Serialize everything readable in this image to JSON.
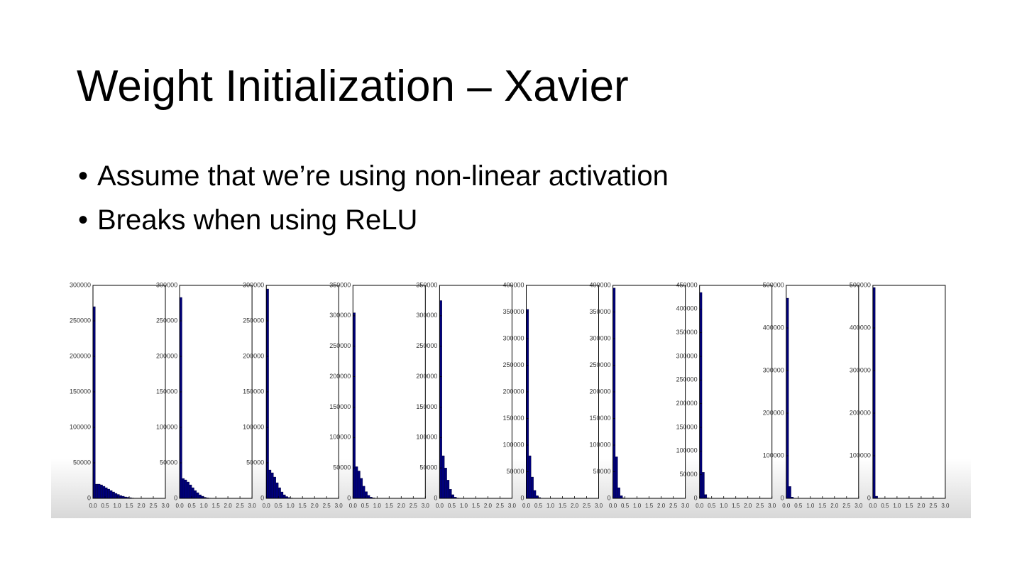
{
  "title": "Weight Initialization – Xavier",
  "bullets": [
    "Assume that we’re using non-linear activation",
    "Breaks when using ReLU"
  ],
  "chart_data": [
    {
      "type": "histogram",
      "color": "#00007a",
      "xlim": [
        0,
        3
      ],
      "ylim": [
        0,
        300000
      ],
      "xticks": [
        {
          "value": 0,
          "label": "0.0"
        },
        0.5,
        {
          "value": 1,
          "label": "1.0"
        },
        1.5,
        {
          "value": 2,
          "label": "2.0"
        },
        2.5,
        {
          "value": 3,
          "label": "3.0"
        }
      ],
      "yticks": [
        0,
        50000,
        100000,
        150000,
        200000,
        250000,
        300000
      ],
      "bins": [
        0,
        0.1,
        0.2,
        0.3,
        0.4,
        0.5,
        0.6,
        0.7,
        0.8,
        0.9,
        1,
        1.1,
        1.2,
        1.3,
        1.4,
        1.5,
        1.6,
        1.7,
        1.8,
        1.9,
        2
      ],
      "counts": [
        270000,
        20000,
        20000,
        19000,
        17000,
        15000,
        13000,
        11000,
        9000,
        7000,
        5500,
        4000,
        3000,
        2000,
        1500,
        1000,
        500,
        300,
        100,
        0
      ]
    },
    {
      "type": "histogram",
      "color": "#00007a",
      "xlim": [
        0,
        3
      ],
      "ylim": [
        0,
        300000
      ],
      "xticks": [
        {
          "value": 0,
          "label": "0.0"
        },
        0.5,
        {
          "value": 1,
          "label": "1.0"
        },
        1.5,
        {
          "value": 2,
          "label": "2.0"
        },
        2.5,
        {
          "value": 3,
          "label": "3.0"
        }
      ],
      "yticks": [
        0,
        50000,
        100000,
        150000,
        200000,
        250000,
        300000
      ],
      "bins": [
        0,
        0.1,
        0.2,
        0.3,
        0.4,
        0.5,
        0.6,
        0.7,
        0.8,
        0.9,
        1,
        1.1,
        1.2,
        1.3,
        1.4,
        1.5,
        1.6,
        1.7,
        1.8,
        1.9,
        2
      ],
      "counts": [
        283000,
        28000,
        26000,
        23000,
        19000,
        15000,
        11000,
        8000,
        5000,
        3000,
        1500,
        800,
        400,
        200,
        100,
        0,
        0,
        0,
        0,
        0
      ]
    },
    {
      "type": "histogram",
      "color": "#00007a",
      "xlim": [
        0,
        3
      ],
      "ylim": [
        0,
        300000
      ],
      "xticks": [
        {
          "value": 0,
          "label": "0.0"
        },
        0.5,
        {
          "value": 1,
          "label": "1.0"
        },
        1.5,
        {
          "value": 2,
          "label": "2.0"
        },
        2.5,
        {
          "value": 3,
          "label": "3.0"
        }
      ],
      "yticks": [
        0,
        50000,
        100000,
        150000,
        200000,
        250000,
        300000
      ],
      "bins": [
        0,
        0.1,
        0.2,
        0.3,
        0.4,
        0.5,
        0.6,
        0.7,
        0.8,
        0.9,
        1,
        1.1,
        1.2,
        1.3,
        1.4,
        1.5,
        1.6,
        1.7,
        1.8,
        1.9,
        2
      ],
      "counts": [
        295000,
        40000,
        36000,
        30000,
        22000,
        15000,
        9000,
        5000,
        2500,
        1200,
        500,
        200,
        100,
        0,
        0,
        0,
        0,
        0,
        0,
        0
      ]
    },
    {
      "type": "histogram",
      "color": "#00007a",
      "xlim": [
        0,
        3
      ],
      "ylim": [
        0,
        350000
      ],
      "xticks": [
        {
          "value": 0,
          "label": "0.0"
        },
        0.5,
        {
          "value": 1,
          "label": "1.0"
        },
        1.5,
        {
          "value": 2,
          "label": "2.0"
        },
        2.5,
        {
          "value": 3,
          "label": "3.0"
        }
      ],
      "yticks": [
        0,
        50000,
        100000,
        150000,
        200000,
        250000,
        300000,
        350000
      ],
      "bins": [
        0,
        0.1,
        0.2,
        0.3,
        0.4,
        0.5,
        0.6,
        0.7,
        0.8,
        0.9,
        1,
        1.1,
        1.2,
        1.3,
        1.4,
        1.5,
        1.6,
        1.7,
        1.8,
        1.9,
        2
      ],
      "counts": [
        305000,
        52000,
        45000,
        33000,
        20000,
        11000,
        5000,
        2000,
        800,
        300,
        100,
        0,
        0,
        0,
        0,
        0,
        0,
        0,
        0,
        0
      ]
    },
    {
      "type": "histogram",
      "color": "#00007a",
      "xlim": [
        0,
        3
      ],
      "ylim": [
        0,
        350000
      ],
      "xticks": [
        {
          "value": 0,
          "label": "0.0"
        },
        0.5,
        {
          "value": 1,
          "label": "1.0"
        },
        1.5,
        {
          "value": 2,
          "label": "2.0"
        },
        2.5,
        {
          "value": 3,
          "label": "3.0"
        }
      ],
      "yticks": [
        0,
        50000,
        100000,
        150000,
        200000,
        250000,
        300000,
        350000
      ],
      "bins": [
        0,
        0.1,
        0.2,
        0.3,
        0.4,
        0.5,
        0.6,
        0.7,
        0.8,
        0.9,
        1,
        1.1,
        1.2,
        1.3,
        1.4,
        1.5,
        1.6,
        1.7,
        1.8,
        1.9,
        2
      ],
      "counts": [
        325000,
        70000,
        50000,
        30000,
        15000,
        6000,
        2000,
        600,
        200,
        0,
        0,
        0,
        0,
        0,
        0,
        0,
        0,
        0,
        0,
        0
      ]
    },
    {
      "type": "histogram",
      "color": "#00007a",
      "xlim": [
        0,
        3
      ],
      "ylim": [
        0,
        400000
      ],
      "xticks": [
        {
          "value": 0,
          "label": "0.0"
        },
        0.5,
        {
          "value": 1,
          "label": "1.0"
        },
        1.5,
        {
          "value": 2,
          "label": "2.0"
        },
        2.5,
        {
          "value": 3,
          "label": "3.0"
        }
      ],
      "yticks": [
        0,
        50000,
        100000,
        150000,
        200000,
        250000,
        300000,
        350000,
        400000
      ],
      "bins": [
        0,
        0.1,
        0.2,
        0.3,
        0.4,
        0.5,
        0.6,
        0.7,
        0.8,
        0.9,
        1,
        1.1,
        1.2,
        1.3,
        1.4,
        1.5,
        1.6,
        1.7,
        1.8,
        1.9,
        2
      ],
      "counts": [
        355000,
        80000,
        40000,
        15000,
        5000,
        1500,
        400,
        100,
        0,
        0,
        0,
        0,
        0,
        0,
        0,
        0,
        0,
        0,
        0,
        0
      ]
    },
    {
      "type": "histogram",
      "color": "#00007a",
      "xlim": [
        0,
        3
      ],
      "ylim": [
        0,
        400000
      ],
      "xticks": [
        {
          "value": 0,
          "label": "0.0"
        },
        0.5,
        {
          "value": 1,
          "label": "1.0"
        },
        1.5,
        {
          "value": 2,
          "label": "2.0"
        },
        2.5,
        {
          "value": 3,
          "label": "3.0"
        }
      ],
      "yticks": [
        0,
        50000,
        100000,
        150000,
        200000,
        250000,
        300000,
        350000,
        400000
      ],
      "bins": [
        0,
        0.1,
        0.2,
        0.3,
        0.4,
        0.5,
        0.6,
        0.7,
        0.8,
        0.9,
        1,
        1.1,
        1.2,
        1.3,
        1.4,
        1.5,
        1.6,
        1.7,
        1.8,
        1.9,
        2
      ],
      "counts": [
        395000,
        78000,
        20000,
        5000,
        1000,
        200,
        0,
        0,
        0,
        0,
        0,
        0,
        0,
        0,
        0,
        0,
        0,
        0,
        0,
        0
      ]
    },
    {
      "type": "histogram",
      "color": "#00007a",
      "xlim": [
        0,
        3
      ],
      "ylim": [
        0,
        450000
      ],
      "xticks": [
        {
          "value": 0,
          "label": "0.0"
        },
        0.5,
        {
          "value": 1,
          "label": "1.0"
        },
        1.5,
        {
          "value": 2,
          "label": "2.0"
        },
        2.5,
        {
          "value": 3,
          "label": "3.0"
        }
      ],
      "yticks": [
        0,
        50000,
        100000,
        150000,
        200000,
        250000,
        300000,
        350000,
        400000,
        450000
      ],
      "bins": [
        0,
        0.1,
        0.2,
        0.3,
        0.4,
        0.5,
        0.6,
        0.7,
        0.8,
        0.9,
        1,
        1.1,
        1.2,
        1.3,
        1.4,
        1.5,
        1.6,
        1.7,
        1.8,
        1.9,
        2
      ],
      "counts": [
        435000,
        55000,
        8000,
        1000,
        100,
        0,
        0,
        0,
        0,
        0,
        0,
        0,
        0,
        0,
        0,
        0,
        0,
        0,
        0,
        0
      ]
    },
    {
      "type": "histogram",
      "color": "#00007a",
      "xlim": [
        0,
        3
      ],
      "ylim": [
        0,
        500000
      ],
      "xticks": [
        {
          "value": 0,
          "label": "0.0"
        },
        0.5,
        {
          "value": 1,
          "label": "1.0"
        },
        1.5,
        {
          "value": 2,
          "label": "2.0"
        },
        2.5,
        {
          "value": 3,
          "label": "3.0"
        }
      ],
      "yticks": [
        0,
        100000,
        200000,
        300000,
        400000,
        500000
      ],
      "bins": [
        0,
        0.1,
        0.2,
        0.3,
        0.4,
        0.5,
        0.6,
        0.7,
        0.8,
        0.9,
        1,
        1.1,
        1.2,
        1.3,
        1.4,
        1.5,
        1.6,
        1.7,
        1.8,
        1.9,
        2
      ],
      "counts": [
        470000,
        28000,
        3000,
        200,
        0,
        0,
        0,
        0,
        0,
        0,
        0,
        0,
        0,
        0,
        0,
        0,
        0,
        0,
        0,
        0
      ]
    },
    {
      "type": "histogram",
      "color": "#00007a",
      "xlim": [
        0,
        3
      ],
      "ylim": [
        0,
        500000
      ],
      "xticks": [
        {
          "value": 0,
          "label": "0.0"
        },
        0.5,
        {
          "value": 1,
          "label": "1.0"
        },
        1.5,
        {
          "value": 2,
          "label": "2.0"
        },
        2.5,
        {
          "value": 3,
          "label": "3.0"
        }
      ],
      "yticks": [
        0,
        100000,
        200000,
        300000,
        400000,
        500000
      ],
      "bins": [
        0,
        0.1,
        0.2,
        0.3,
        0.4,
        0.5,
        0.6,
        0.7,
        0.8,
        0.9,
        1,
        1.1,
        1.2,
        1.3,
        1.4,
        1.5,
        1.6,
        1.7,
        1.8,
        1.9,
        2
      ],
      "counts": [
        495000,
        5000,
        300,
        0,
        0,
        0,
        0,
        0,
        0,
        0,
        0,
        0,
        0,
        0,
        0,
        0,
        0,
        0,
        0,
        0
      ]
    }
  ]
}
